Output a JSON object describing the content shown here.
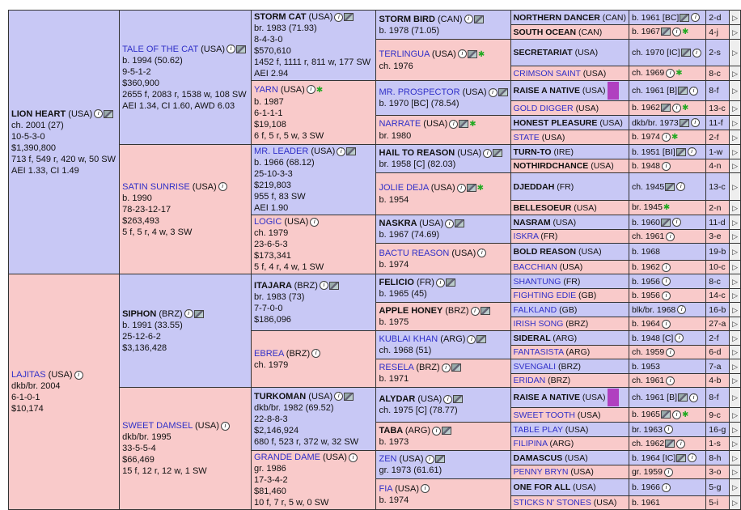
{
  "subject": {
    "name": "LION HEART",
    "country": "(USA)",
    "lines": [
      "ch. 2001 (27)",
      "10-5-3-0",
      "$1,390,800",
      "713 f, 549 r, 420 w, 50 SW",
      "AEI 1.33, CI 1.49"
    ]
  },
  "dam": {
    "name": "LAJITAS",
    "country": "(USA)",
    "lines": [
      "dkb/br. 2004",
      "6-1-0-1",
      "$10,174"
    ]
  },
  "gen2": [
    {
      "name": "TALE OF THE CAT",
      "country": "(USA)",
      "lines": [
        "b. 1994 (50.62)",
        "9-5-1-2",
        "$360,900",
        "2655 f, 2083 r, 1538 w, 108 SW",
        "AEI 1.34, CI 1.60, AWD 6.03"
      ]
    },
    {
      "name": "SATIN SUNRISE",
      "country": "(USA)",
      "lines": [
        "b. 1990",
        "78-23-12-17",
        "$263,493",
        "5 f, 5 r, 4 w, 3 SW"
      ]
    },
    {
      "name": "SIPHON",
      "country": "(BRZ)",
      "lines": [
        "b. 1991 (33.55)",
        "25-12-6-2",
        "$3,136,428"
      ]
    },
    {
      "name": "SWEET DAMSEL",
      "country": "(USA)",
      "lines": [
        "dkb/br. 1995",
        "33-5-5-4",
        "$66,469",
        "15 f, 12 r, 12 w, 1 SW"
      ]
    }
  ],
  "gen3": [
    {
      "name": "STORM CAT",
      "country": "(USA)",
      "lines": [
        "br. 1983 (71.93)",
        "8-4-3-0",
        "$570,610",
        "1452 f, 1111 r, 811 w, 177 SW",
        "AEI 2.94"
      ]
    },
    {
      "name": "YARN",
      "country": "(USA)",
      "lines": [
        "b. 1987",
        "6-1-1-1",
        "$19,108",
        "6 f, 5 r, 5 w, 3 SW"
      ]
    },
    {
      "name": "MR. LEADER",
      "country": "(USA)",
      "lines": [
        "b. 1966 (68.12)",
        "25-10-3-3",
        "$219,803",
        "955 f, 83 SW",
        "AEI 1.90"
      ]
    },
    {
      "name": "LOGIC",
      "country": "(USA)",
      "lines": [
        "ch. 1979",
        "23-6-5-3",
        "$173,341",
        "5 f, 4 r, 4 w, 1 SW"
      ]
    },
    {
      "name": "ITAJARA",
      "country": "(BRZ)",
      "lines": [
        "br. 1983 (73)",
        "7-7-0-0",
        "$186,096"
      ]
    },
    {
      "name": "EBREA",
      "country": "(BRZ)",
      "lines": [
        "ch. 1979"
      ]
    },
    {
      "name": "TURKOMAN",
      "country": "(USA)",
      "lines": [
        "dkb/br. 1982 (69.52)",
        "22-8-8-3",
        "$2,146,924",
        "680 f, 523 r, 372 w, 32 SW"
      ]
    },
    {
      "name": "GRANDE DAME",
      "country": "(USA)",
      "lines": [
        "gr. 1986",
        "17-3-4-2",
        "$81,460",
        "10 f, 7 r, 5 w, 0 SW"
      ]
    }
  ],
  "gen4": [
    {
      "name": "STORM BIRD",
      "country": "(CAN)",
      "line": "b. 1978 (71.05)"
    },
    {
      "name": "TERLINGUA",
      "country": "(USA)",
      "line": "ch. 1976"
    },
    {
      "name": "MR. PROSPECTOR",
      "country": "(USA)",
      "line": "b. 1970 [BC] (78.54)"
    },
    {
      "name": "NARRATE",
      "country": "(USA)",
      "line": "br. 1980"
    },
    {
      "name": "HAIL TO REASON",
      "country": "(USA)",
      "line": "br. 1958 [C] (82.03)"
    },
    {
      "name": "JOLIE DEJA",
      "country": "(USA)",
      "line": "b. 1954"
    },
    {
      "name": "NASKRA",
      "country": "(USA)",
      "line": "b. 1967 (74.69)"
    },
    {
      "name": "BACTU REASON",
      "country": "(USA)",
      "line": "b. 1974"
    },
    {
      "name": "FELICIO",
      "country": "(FR)",
      "line": "b. 1965 (45)"
    },
    {
      "name": "APPLE HONEY",
      "country": "(BRZ)",
      "line": "b. 1975"
    },
    {
      "name": "KUBLAI KHAN",
      "country": "(ARG)",
      "line": "ch. 1968 (51)"
    },
    {
      "name": "RESELA",
      "country": "(BRZ)",
      "line": "b. 1971"
    },
    {
      "name": "ALYDAR",
      "country": "(USA)",
      "line": "ch. 1975 [C] (78.77)"
    },
    {
      "name": "TABA",
      "country": "(ARG)",
      "line": "b. 1973"
    },
    {
      "name": "ZEN",
      "country": "(USA)",
      "line": "gr. 1973 (61.61)"
    },
    {
      "name": "FIA",
      "country": "(USA)",
      "line": "b. 1974"
    }
  ],
  "gen5": [
    {
      "name": "NORTHERN DANCER",
      "country": "(CAN)",
      "info": "b. 1961 [BC]",
      "cut": "2-d"
    },
    {
      "name": "SOUTH OCEAN",
      "country": "(CAN)",
      "info": "b. 1967",
      "cut": "4-j"
    },
    {
      "name": "SECRETARIAT",
      "country": "(USA)",
      "info": "ch. 1970 [IC]",
      "cut": "2-s"
    },
    {
      "name": "CRIMSON SAINT",
      "country": "(USA)",
      "info": "ch. 1969",
      "cut": "8-c"
    },
    {
      "name": "RAISE A NATIVE",
      "country": "(USA)",
      "info": "ch. 1961 [B]",
      "cut": "8-f"
    },
    {
      "name": "GOLD DIGGER",
      "country": "(USA)",
      "info": "b. 1962",
      "cut": "13-c"
    },
    {
      "name": "HONEST PLEASURE",
      "country": "(USA)",
      "info": "dkb/br. 1973",
      "cut": "11-f"
    },
    {
      "name": "STATE",
      "country": "(USA)",
      "info": "b. 1974",
      "cut": "2-f"
    },
    {
      "name": "TURN-TO",
      "country": "(IRE)",
      "info": "b. 1951 [BI]",
      "cut": "1-w"
    },
    {
      "name": "NOTHIRDCHANCE",
      "country": "(USA)",
      "info": "b. 1948",
      "cut": "4-n"
    },
    {
      "name": "DJEDDAH",
      "country": "(FR)",
      "info": "ch. 1945",
      "cut": "13-c"
    },
    {
      "name": "BELLESOEUR",
      "country": "(USA)",
      "info": "br. 1945",
      "cut": "2-n"
    },
    {
      "name": "NASRAM",
      "country": "(USA)",
      "info": "b. 1960",
      "cut": "11-d"
    },
    {
      "name": "ISKRA",
      "country": "(FR)",
      "info": "ch. 1961",
      "cut": "3-e"
    },
    {
      "name": "BOLD REASON",
      "country": "(USA)",
      "info": "b. 1968",
      "cut": "19-b"
    },
    {
      "name": "BACCHIAN",
      "country": "(USA)",
      "info": "b. 1962",
      "cut": "10-c"
    },
    {
      "name": "SHANTUNG",
      "country": "(FR)",
      "info": "b. 1956",
      "cut": "8-c"
    },
    {
      "name": "FIGHTING EDIE",
      "country": "(GB)",
      "info": "b. 1956",
      "cut": "14-c"
    },
    {
      "name": "FALKLAND",
      "country": "(GB)",
      "info": "blk/br. 1968",
      "cut": "16-b"
    },
    {
      "name": "IRISH SONG",
      "country": "(BRZ)",
      "info": "b. 1964",
      "cut": "27-a"
    },
    {
      "name": "SIDERAL",
      "country": "(ARG)",
      "info": "b. 1948 [C]",
      "cut": "2-f"
    },
    {
      "name": "FANTASISTA",
      "country": "(ARG)",
      "info": "ch. 1959",
      "cut": "6-d"
    },
    {
      "name": "SVENGALI",
      "country": "(BRZ)",
      "info": "b. 1953",
      "cut": "7-a"
    },
    {
      "name": "ERIDAN",
      "country": "(BRZ)",
      "info": "ch. 1961",
      "cut": "4-b"
    },
    {
      "name": "RAISE A NATIVE",
      "country": "(USA)",
      "info": "ch. 1961 [B]",
      "cut": "8-f"
    },
    {
      "name": "SWEET TOOTH",
      "country": "(USA)",
      "info": "b. 1965",
      "cut": "9-c"
    },
    {
      "name": "TABLE PLAY",
      "country": "(USA)",
      "info": "br. 1963",
      "cut": "16-g"
    },
    {
      "name": "FILIPINA",
      "country": "(ARG)",
      "info": "ch. 1962",
      "cut": "1-s"
    },
    {
      "name": "DAMASCUS",
      "country": "(USA)",
      "info": "b. 1964 [IC]",
      "cut": "8-h"
    },
    {
      "name": "PENNY BRYN",
      "country": "(USA)",
      "info": "gr. 1959",
      "cut": "3-o"
    },
    {
      "name": "ONE FOR ALL",
      "country": "(USA)",
      "info": "b. 1966",
      "cut": "5-g"
    },
    {
      "name": "STICKS N' STONES",
      "country": "(USA)",
      "info": "b. 1961",
      "cut": "5-i"
    }
  ],
  "icons": {
    "info": "info-icon",
    "photo": "photo-icon",
    "star": "star-icon",
    "arrow": "expand-arrow-icon"
  },
  "colors": {
    "male": "#c8c8f5",
    "female": "#f9caca",
    "link": "#3030c8",
    "star": "#22aa22"
  }
}
